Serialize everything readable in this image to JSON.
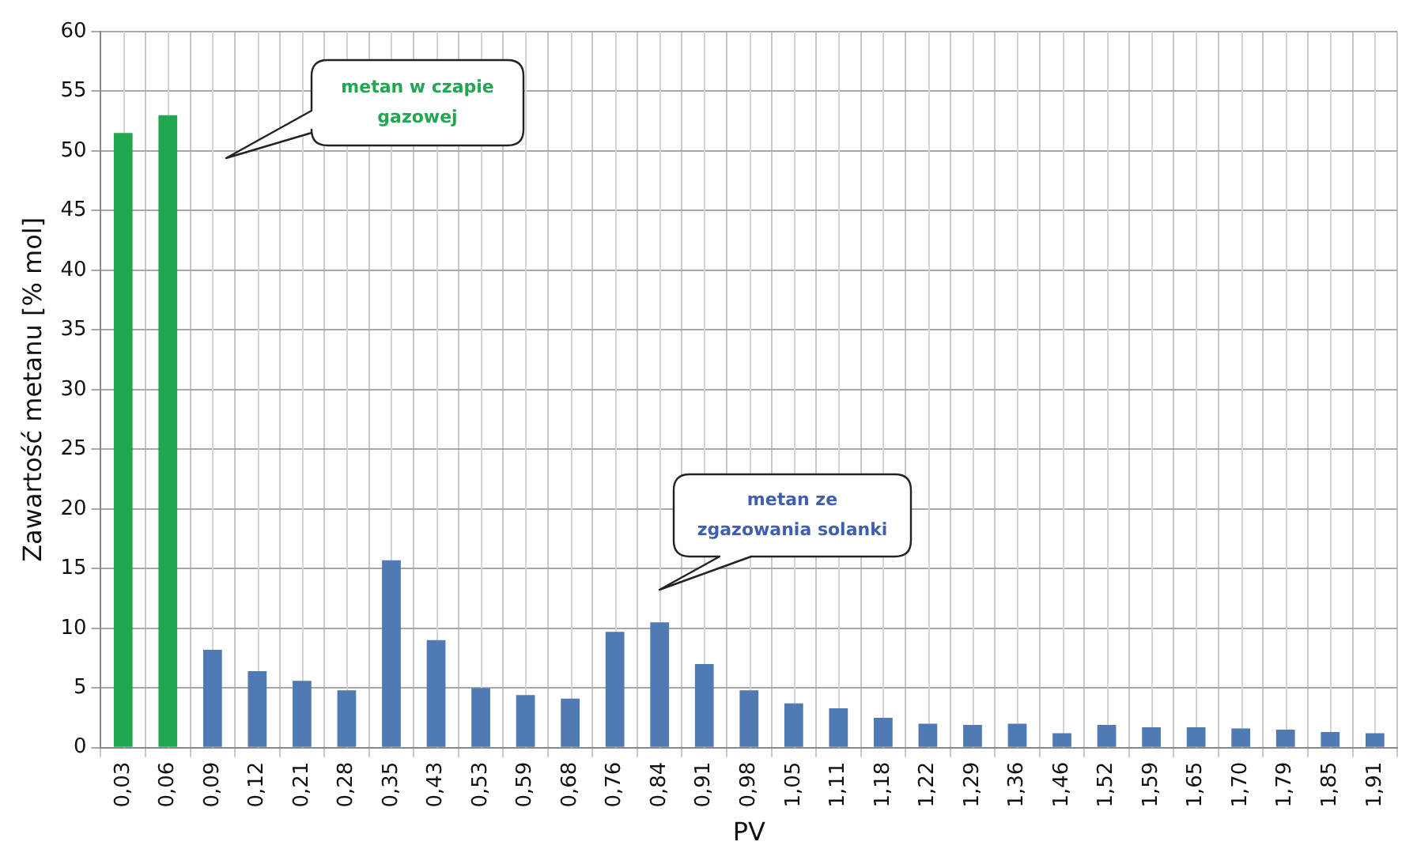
{
  "chart_data": {
    "type": "bar",
    "xlabel": "PV",
    "ylabel": "Zawartość metanu [% mol]",
    "categories": [
      "0,03",
      "0,06",
      "0,09",
      "0,12",
      "0,21",
      "0,28",
      "0,35",
      "0,43",
      "0,53",
      "0,59",
      "0,68",
      "0,76",
      "0,84",
      "0,91",
      "0,98",
      "1,05",
      "1,11",
      "1,18",
      "1,22",
      "1,29",
      "1,36",
      "1,46",
      "1,52",
      "1,59",
      "1,65",
      "1,70",
      "1,79",
      "1,85",
      "1,91"
    ],
    "values": [
      51.5,
      53,
      8.2,
      6.4,
      5.6,
      4.8,
      15.7,
      9.0,
      5.0,
      4.4,
      4.1,
      9.7,
      10.5,
      7.0,
      4.8,
      3.7,
      3.3,
      2.5,
      2.0,
      1.9,
      2.0,
      1.2,
      1.9,
      1.7,
      1.7,
      1.6,
      1.5,
      1.3,
      1.2
    ],
    "colors": [
      "#21a74f",
      "#21a74f",
      "#4f7ab3",
      "#4f7ab3",
      "#4f7ab3",
      "#4f7ab3",
      "#4f7ab3",
      "#4f7ab3",
      "#4f7ab3",
      "#4f7ab3",
      "#4f7ab3",
      "#4f7ab3",
      "#4f7ab3",
      "#4f7ab3",
      "#4f7ab3",
      "#4f7ab3",
      "#4f7ab3",
      "#4f7ab3",
      "#4f7ab3",
      "#4f7ab3",
      "#4f7ab3",
      "#4f7ab3",
      "#4f7ab3",
      "#4f7ab3",
      "#4f7ab3",
      "#4f7ab3",
      "#4f7ab3",
      "#4f7ab3",
      "#4f7ab3"
    ],
    "ylim": [
      0,
      60
    ],
    "yticks": [
      0,
      5,
      10,
      15,
      20,
      25,
      30,
      35,
      40,
      45,
      50,
      55,
      60
    ],
    "grid": true,
    "annotations": [
      "metan w czapie gazowej",
      "metan ze zgazowania solanki"
    ]
  }
}
